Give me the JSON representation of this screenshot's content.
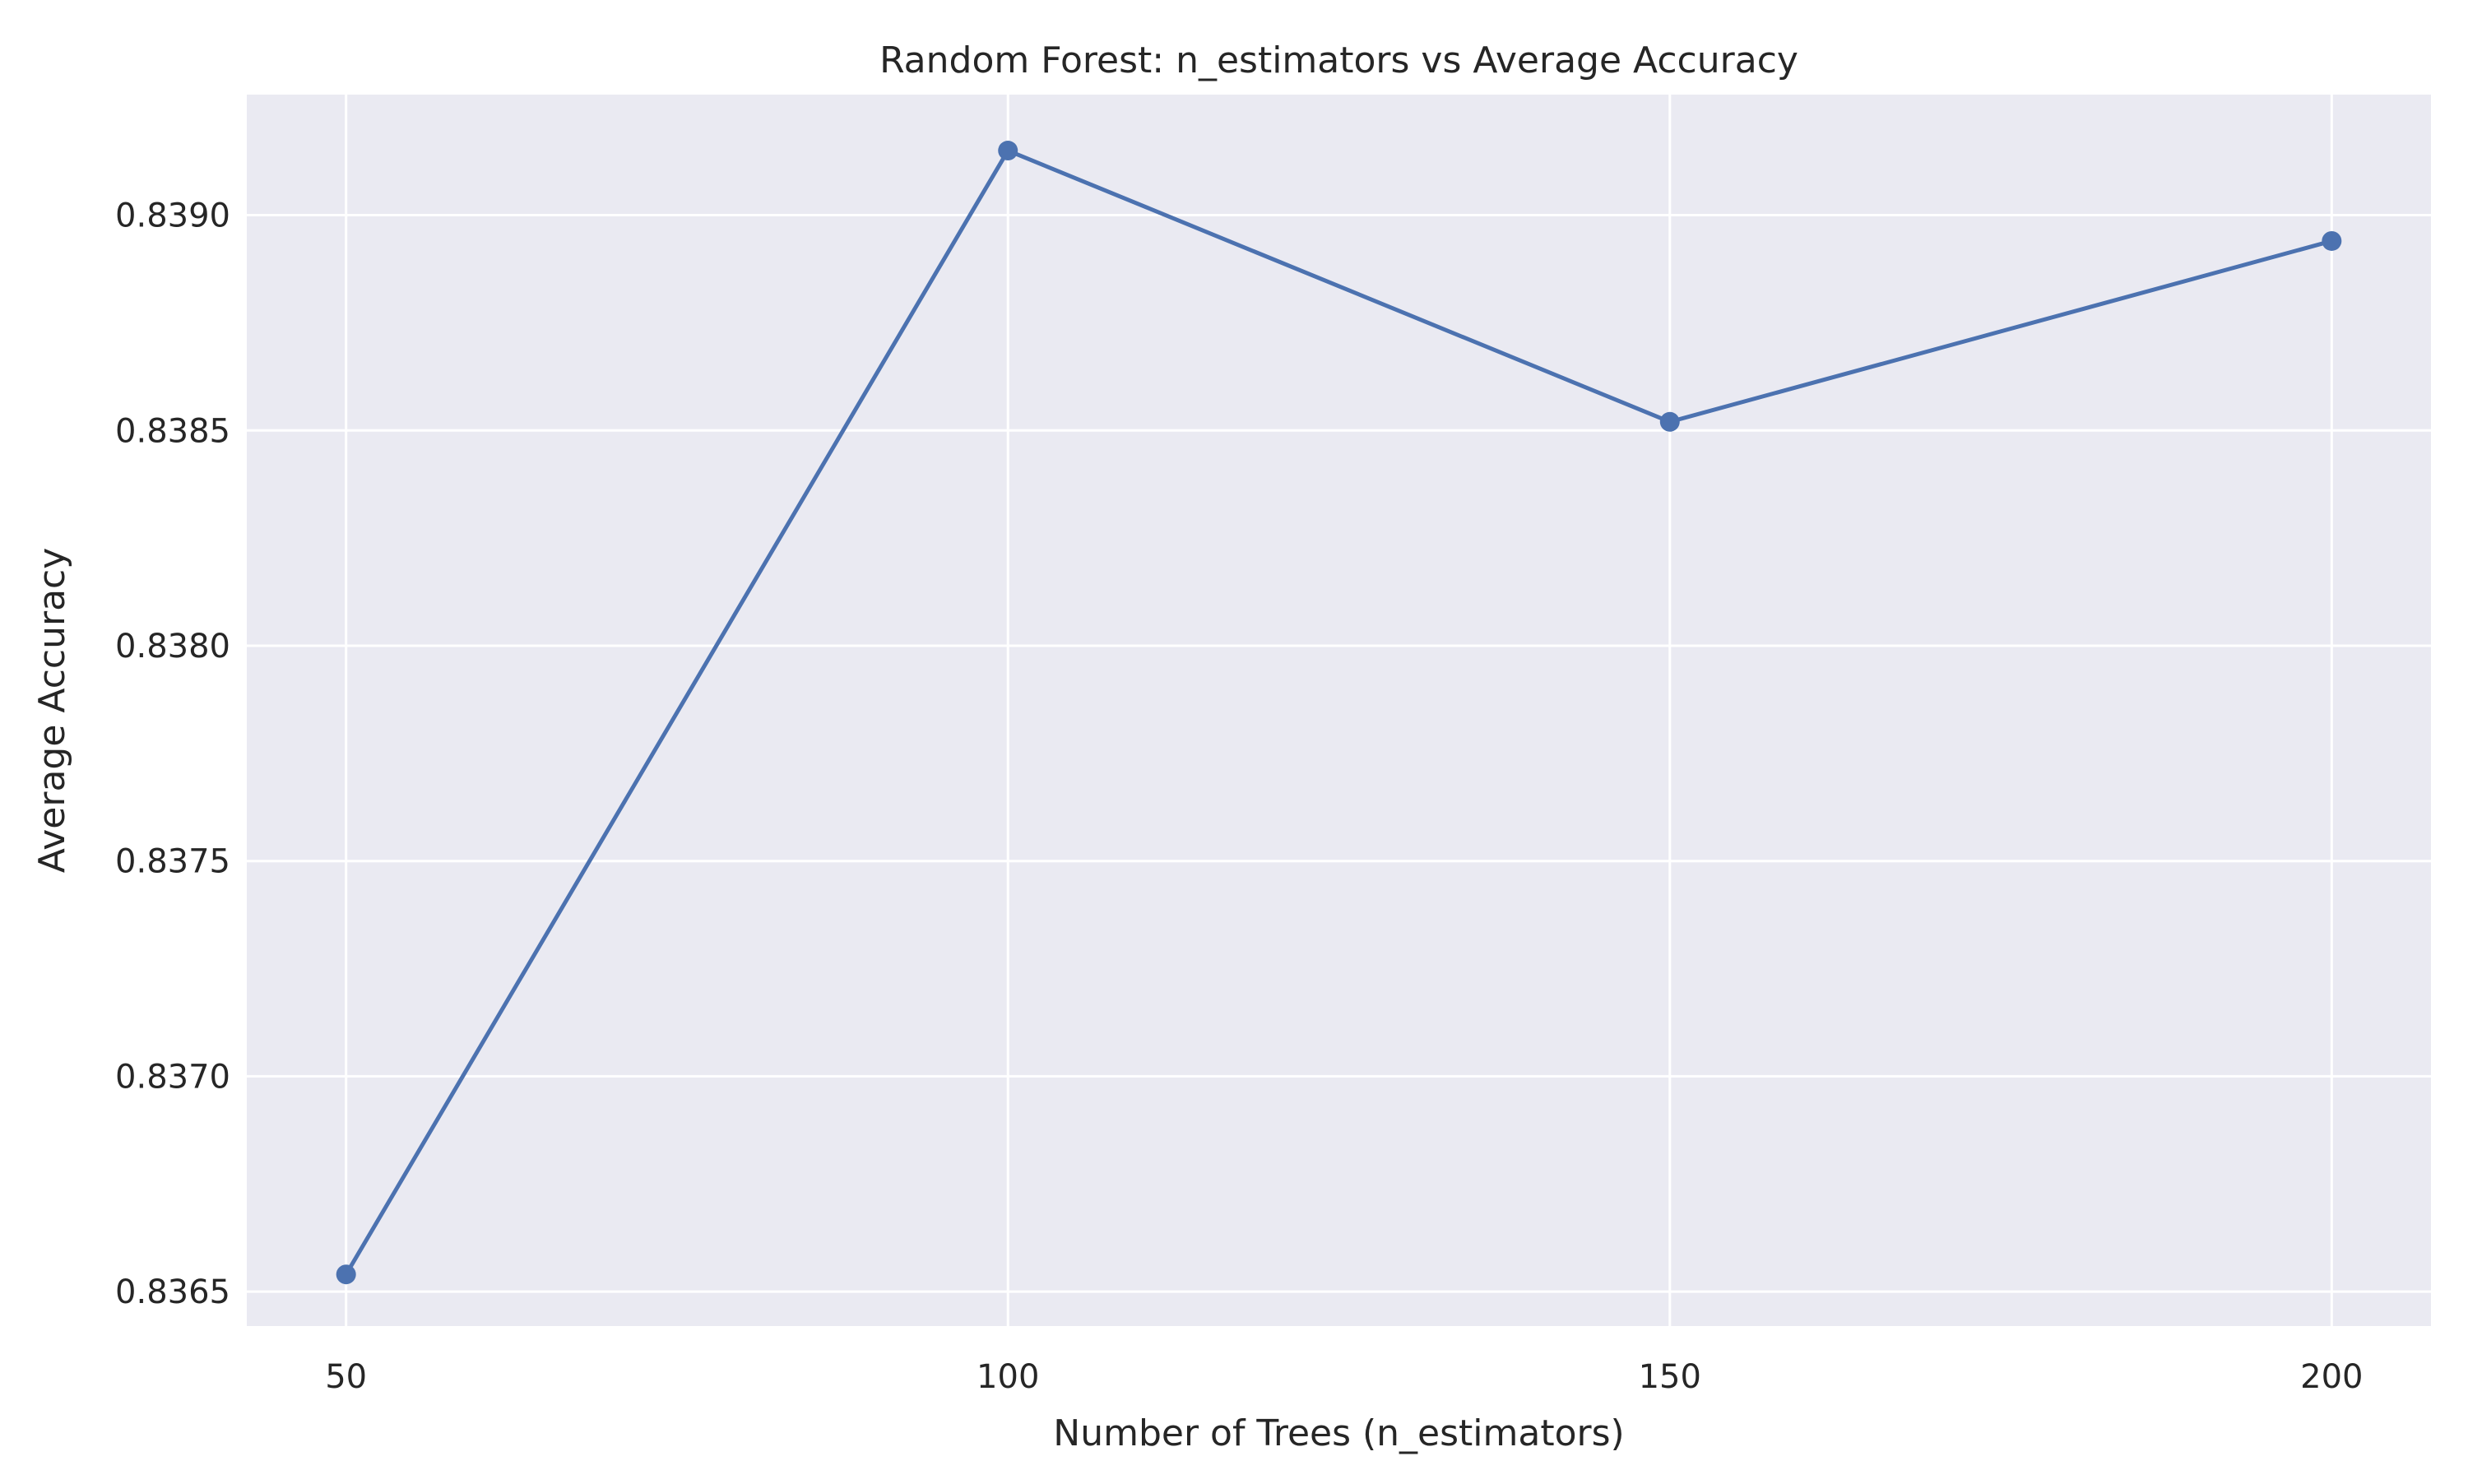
{
  "colors": {
    "background": "#ffffff",
    "plot_background": "#eaeaf2",
    "grid": "#ffffff",
    "series": "#4c72b0",
    "text": "#262626"
  },
  "chart_data": {
    "type": "line",
    "title": "Random Forest: n_estimators vs Average Accuracy",
    "xlabel": "Number of Trees (n_estimators)",
    "ylabel": "Average Accuracy",
    "x": [
      50,
      100,
      150,
      200
    ],
    "series": [
      {
        "values": [
          0.83654,
          0.83915,
          0.83852,
          0.83894
        ],
        "marker": "circle"
      }
    ],
    "xticks": [
      50,
      100,
      150,
      200
    ],
    "xtick_labels": [
      "50",
      "100",
      "150",
      "200"
    ],
    "xlim": [
      42.5,
      207.5
    ],
    "yticks": [
      0.8365,
      0.837,
      0.8375,
      0.838,
      0.8385,
      0.839
    ],
    "ytick_labels": [
      "0.8365",
      "0.8370",
      "0.8375",
      "0.8380",
      "0.8385",
      "0.8390"
    ],
    "ylim": [
      0.83642,
      0.83928
    ],
    "grid": true,
    "legend": false
  }
}
